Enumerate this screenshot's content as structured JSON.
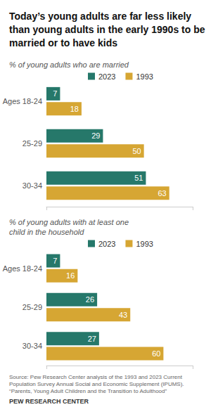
{
  "title": "Today’s young adults are far less likely than young adults in the early 1990s to be married or to have kids",
  "chart_data": [
    {
      "type": "bar",
      "orientation": "horizontal",
      "subtitle": "% of young adults who are married",
      "categories": [
        "Ages 18-24",
        "25-29",
        "30-34"
      ],
      "series": [
        {
          "name": "2023",
          "color": "#26786a",
          "values": [
            7,
            29,
            51
          ]
        },
        {
          "name": "1993",
          "color": "#d6a633",
          "values": [
            18,
            50,
            63
          ]
        }
      ],
      "xlim": [
        0,
        75
      ],
      "xticks": [
        0,
        75
      ],
      "grid": false,
      "legend": "top",
      "data_labels": true,
      "tick_labels": "y"
    },
    {
      "type": "bar",
      "orientation": "horizontal",
      "subtitle": "% of young adults with at least one child in the household",
      "categories": [
        "Ages 18-24",
        "25-29",
        "30-34"
      ],
      "series": [
        {
          "name": "2023",
          "color": "#26786a",
          "values": [
            7,
            26,
            27
          ]
        },
        {
          "name": "1993",
          "color": "#d6a633",
          "values": [
            16,
            43,
            60
          ]
        }
      ],
      "xlim": [
        0,
        75
      ],
      "xticks": [
        0,
        75
      ],
      "grid": false,
      "legend": "top",
      "data_labels": true,
      "tick_labels": "y"
    }
  ],
  "source": [
    "Source: Pew Research Center analysis of the 1993 and 2023 Current Population Survey Annual Social and Economic Supplement (IPUMS).",
    "“Parents, Young Adult Children and the Transition to Adulthood”"
  ],
  "publisher": "PEW RESEARCH CENTER"
}
